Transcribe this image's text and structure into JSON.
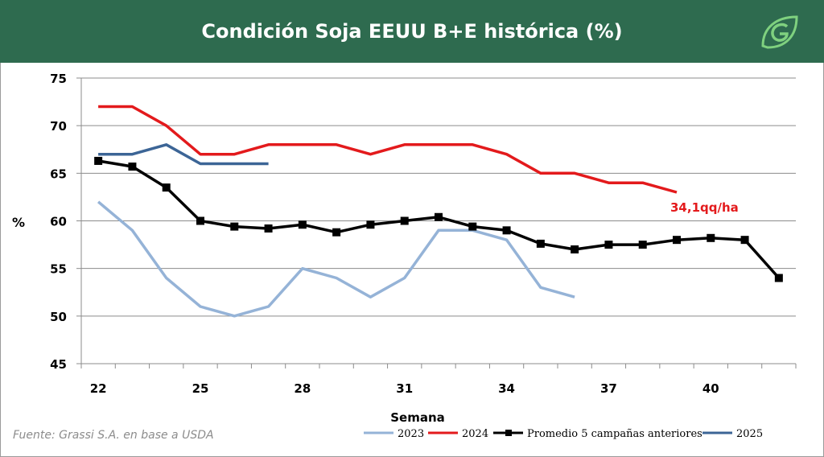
{
  "header": {
    "title": "Condición Soja EEUU B+E histórica (%)",
    "color": "#2e6b4f"
  },
  "logo": {
    "icon": "leaf-logo-icon"
  },
  "source": "Fuente: Grassi S.A. en base a USDA",
  "chart_data": {
    "type": "line",
    "ylabel": "%",
    "xlabel": "Semana",
    "xlim": [
      22,
      42
    ],
    "ylim": [
      45,
      75
    ],
    "y_ticks": [
      45,
      50,
      55,
      60,
      65,
      70,
      75
    ],
    "x_ticks": [
      22,
      25,
      28,
      31,
      34,
      37,
      40
    ],
    "grid": "horizontal",
    "legend_position": "bottom",
    "series": [
      {
        "name": "2023",
        "color": "#95b3d7",
        "marker": "none",
        "x": [
          22,
          23,
          24,
          25,
          26,
          27,
          28,
          29,
          30,
          31,
          32,
          33,
          34,
          35,
          36
        ],
        "values": [
          62,
          59,
          54,
          51,
          50,
          51,
          55,
          54,
          52,
          54,
          59,
          59,
          58,
          53,
          52
        ]
      },
      {
        "name": "2024",
        "color": "#e31a1c",
        "marker": "none",
        "x": [
          22,
          23,
          24,
          25,
          26,
          27,
          28,
          29,
          30,
          31,
          32,
          33,
          34,
          35,
          36,
          37,
          38,
          39
        ],
        "values": [
          72,
          72,
          70,
          67,
          67,
          68,
          68,
          68,
          67,
          68,
          68,
          68,
          67,
          65,
          65,
          64,
          64,
          63
        ]
      },
      {
        "name": "Promedio 5 campañas anteriores",
        "color": "#000000",
        "marker": "square",
        "x": [
          22,
          23,
          24,
          25,
          26,
          27,
          28,
          29,
          30,
          31,
          32,
          33,
          34,
          35,
          36,
          37,
          38,
          39,
          40,
          41,
          42
        ],
        "values": [
          66.3,
          65.7,
          63.5,
          60,
          59.4,
          59.2,
          59.6,
          58.8,
          59.6,
          60,
          60.4,
          59.4,
          59,
          57.6,
          57,
          57.5,
          57.5,
          58,
          58.2,
          58,
          54
        ]
      },
      {
        "name": "2025",
        "color": "#3c6596",
        "marker": "none",
        "x": [
          22,
          23,
          24,
          25,
          26,
          27
        ],
        "values": [
          67,
          67,
          68,
          66,
          66,
          66
        ]
      }
    ],
    "annotations": [
      {
        "text": "34,1qq/ha",
        "series": "2024",
        "x": 39,
        "y": 63,
        "color": "#e31a1c"
      }
    ]
  }
}
